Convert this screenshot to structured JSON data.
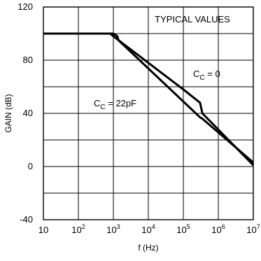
{
  "chart_data": {
    "type": "line",
    "title": "",
    "xlabel": "f (Hz)",
    "ylabel": "GAIN (dB)",
    "xscale": "log",
    "xlim": [
      10,
      10000000
    ],
    "ylim": [
      -40,
      120
    ],
    "grid": true,
    "x_ticks": [
      {
        "base": "10",
        "exp": ""
      },
      {
        "base": "10",
        "exp": "2"
      },
      {
        "base": "10",
        "exp": "3"
      },
      {
        "base": "10",
        "exp": "4"
      },
      {
        "base": "10",
        "exp": "5"
      },
      {
        "base": "10",
        "exp": "6"
      },
      {
        "base": "10",
        "exp": "7"
      }
    ],
    "y_ticks": [
      "120",
      "80",
      "40",
      "0",
      "-40"
    ],
    "corner_label": "TYPICAL VALUES",
    "annotations": [
      {
        "prefix": "C",
        "sub": "C",
        "suffix": " = 0"
      },
      {
        "prefix": "C",
        "sub": "C",
        "suffix": " = 22pF"
      }
    ],
    "series": [
      {
        "x": [
          10,
          900,
          1000,
          1300,
          1400,
          300000,
          350000,
          10000000
        ],
        "y": [
          100,
          100,
          100,
          98,
          95,
          37,
          36,
          3
        ]
      },
      {
        "x": [
          10,
          800,
          1000,
          10000,
          100000,
          300000,
          350000,
          10000000
        ],
        "y": [
          100,
          100,
          98,
          78,
          58,
          48,
          40,
          1
        ]
      }
    ]
  },
  "colors": {
    "line": "#000000",
    "grid": "#000000",
    "background": "#ffffff"
  }
}
